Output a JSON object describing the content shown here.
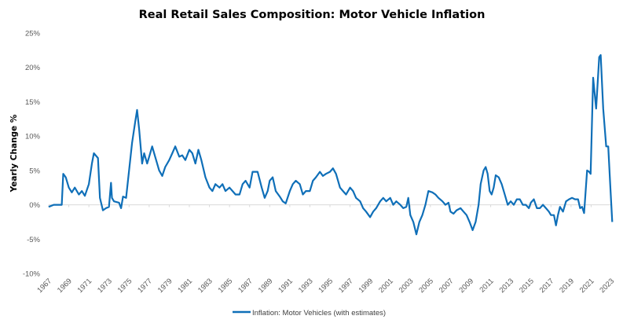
{
  "chart_data": {
    "type": "line",
    "title": "Real Retail Sales Composition: Motor Vehicle Inflation",
    "xlabel": "",
    "ylabel": "Yearly Change %",
    "ylim": [
      -10,
      25
    ],
    "xlim": [
      1967,
      2023
    ],
    "y_ticks": [
      "-10%",
      "-5%",
      "0%",
      "5%",
      "10%",
      "15%",
      "20%",
      "25%"
    ],
    "y_tick_values": [
      -10,
      -5,
      0,
      5,
      10,
      15,
      20,
      25
    ],
    "x_ticks": [
      "1967",
      "1969",
      "1971",
      "1973",
      "1975",
      "1977",
      "1979",
      "1981",
      "1983",
      "1985",
      "1987",
      "1989",
      "1991",
      "1993",
      "1995",
      "1997",
      "1999",
      "2001",
      "2003",
      "2005",
      "2007",
      "2009",
      "2011",
      "2013",
      "2015",
      "2017",
      "2019",
      "2021",
      "2023"
    ],
    "grid": "zero-line only",
    "legend_position": "bottom",
    "series": [
      {
        "name": "Inflation: Motor Vehicles (with estimates)",
        "color": "#0f6fb8",
        "x": [
          1967.0,
          1967.5,
          1968.0,
          1968.3,
          1968.45,
          1968.7,
          1969.0,
          1969.3,
          1969.6,
          1970.0,
          1970.3,
          1970.6,
          1971.0,
          1971.3,
          1971.5,
          1971.9,
          1972.1,
          1972.4,
          1972.7,
          1973.0,
          1973.2,
          1973.3,
          1973.5,
          1974.0,
          1974.2,
          1974.4,
          1974.7,
          1975.0,
          1975.3,
          1975.6,
          1975.8,
          1976.0,
          1976.3,
          1976.5,
          1976.8,
          1977.0,
          1977.3,
          1977.6,
          1978.0,
          1978.3,
          1978.6,
          1979.0,
          1979.3,
          1979.6,
          1980.0,
          1980.3,
          1980.6,
          1981.0,
          1981.3,
          1981.6,
          1981.9,
          1982.2,
          1982.6,
          1983.0,
          1983.3,
          1983.6,
          1984.0,
          1984.3,
          1984.6,
          1985.0,
          1985.3,
          1985.6,
          1986.0,
          1986.3,
          1986.6,
          1987.0,
          1987.3,
          1987.8,
          1988.2,
          1988.5,
          1988.8,
          1989.0,
          1989.3,
          1989.6,
          1990.0,
          1990.3,
          1990.6,
          1991.0,
          1991.3,
          1991.6,
          1992.0,
          1992.3,
          1992.6,
          1993.0,
          1993.3,
          1993.6,
          1994.0,
          1994.3,
          1994.6,
          1995.0,
          1995.3,
          1995.6,
          1996.0,
          1996.3,
          1996.6,
          1997.0,
          1997.3,
          1997.6,
          1998.0,
          1998.3,
          1998.6,
          1999.0,
          1999.3,
          1999.6,
          2000.0,
          2000.3,
          2000.6,
          2001.0,
          2001.3,
          2001.6,
          2002.0,
          2002.3,
          2002.6,
          2002.8,
          2003.0,
          2003.3,
          2003.6,
          2003.9,
          2004.2,
          2004.5,
          2004.8,
          2005.2,
          2005.5,
          2005.8,
          2006.2,
          2006.5,
          2006.8,
          2007.0,
          2007.3,
          2007.6,
          2008.0,
          2008.3,
          2008.6,
          2008.9,
          2009.2,
          2009.5,
          2009.8,
          2010.0,
          2010.3,
          2010.5,
          2010.7,
          2010.9,
          2011.1,
          2011.3,
          2011.5,
          2011.8,
          2012.1,
          2012.4,
          2012.7,
          2013.0,
          2013.3,
          2013.6,
          2013.9,
          2014.2,
          2014.5,
          2014.8,
          2015.0,
          2015.3,
          2015.6,
          2015.9,
          2016.2,
          2016.5,
          2016.8,
          2017.0,
          2017.3,
          2017.5,
          2017.7,
          2017.9,
          2018.2,
          2018.5,
          2018.8,
          2019.1,
          2019.4,
          2019.7,
          2019.9,
          2020.1,
          2020.3,
          2020.6,
          2020.8,
          2020.95,
          2021.2,
          2021.5,
          2021.8,
          2021.95,
          2022.2,
          2022.5,
          2022.7,
          2022.9,
          2023.1
        ],
        "values": [
          -0.3,
          0,
          0,
          0,
          4.5,
          4,
          2.5,
          1.8,
          2.5,
          1.5,
          2,
          1.3,
          3,
          6,
          7.5,
          6.8,
          1,
          -0.8,
          -0.5,
          -0.3,
          3.2,
          1,
          0.5,
          0.3,
          -0.5,
          1.2,
          1,
          5,
          9,
          12,
          13.8,
          11,
          6,
          7.5,
          6,
          7,
          8.5,
          7,
          5,
          4.2,
          5.5,
          6.5,
          7.5,
          8.5,
          7,
          7.2,
          6.5,
          8,
          7.5,
          6,
          8,
          6.5,
          4,
          2.5,
          2,
          3,
          2.5,
          3,
          2,
          2.5,
          2,
          1.5,
          1.5,
          3,
          3.5,
          2.5,
          4.8,
          4.8,
          2.5,
          1,
          2,
          3.5,
          4,
          2,
          1.2,
          0.5,
          0.2,
          2,
          3,
          3.5,
          3,
          1.5,
          2,
          2,
          3.5,
          4,
          4.8,
          4.2,
          4.5,
          4.8,
          5.3,
          4.5,
          2.5,
          2,
          1.5,
          2.5,
          2,
          1,
          0.5,
          -0.5,
          -1,
          -1.8,
          -1,
          -0.5,
          0.5,
          1,
          0.5,
          1,
          0,
          0.5,
          0,
          -0.5,
          -0.3,
          1,
          -1.5,
          -2.5,
          -4.3,
          -2.5,
          -1.5,
          0,
          2,
          1.8,
          1.5,
          1,
          0.5,
          0,
          0.3,
          -1,
          -1.3,
          -0.8,
          -0.5,
          -1,
          -1.5,
          -2.5,
          -3.7,
          -2.5,
          0,
          3,
          5,
          5.5,
          4.5,
          2,
          1.5,
          2.5,
          4.3,
          4,
          3,
          1.5,
          0,
          0.5,
          0,
          0.8,
          0.8,
          0,
          0,
          -0.5,
          0.3,
          0.8,
          -0.5,
          -0.5,
          0,
          -0.5,
          -1,
          -1.5,
          -1.5,
          -3,
          -1.5,
          -0.3,
          -1,
          0.5,
          0.8,
          1,
          0.8,
          0.8,
          -0.5,
          -0.3,
          -1.2,
          5,
          4.8,
          4.5,
          18.5,
          14,
          21.5,
          21.8,
          14,
          8.5,
          8.5,
          3,
          -2.5
        ]
      }
    ]
  }
}
